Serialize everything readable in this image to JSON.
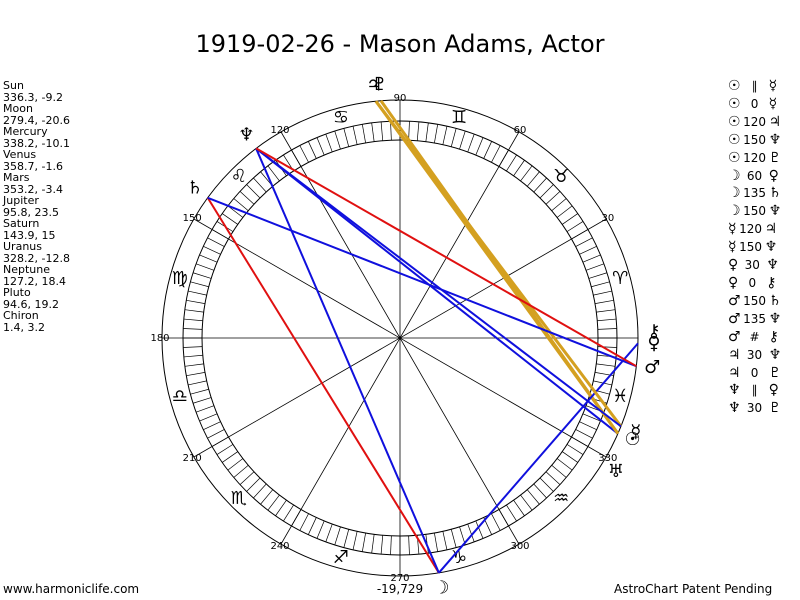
{
  "header": {
    "title": "1919-02-26 - Mason Adams, Actor"
  },
  "planets": [
    {
      "name": "Sun",
      "glyph": "☉",
      "longitude": 336.3,
      "latitude": -9.2
    },
    {
      "name": "Moon",
      "glyph": "☽",
      "longitude": 279.4,
      "latitude": -20.6
    },
    {
      "name": "Mercury",
      "glyph": "☿",
      "longitude": 338.2,
      "latitude": -10.1
    },
    {
      "name": "Venus",
      "glyph": "♀",
      "longitude": 358.7,
      "latitude": -1.6
    },
    {
      "name": "Mars",
      "glyph": "♂",
      "longitude": 353.2,
      "latitude": -3.4
    },
    {
      "name": "Jupiter",
      "glyph": "♃",
      "longitude": 95.8,
      "latitude": 23.5
    },
    {
      "name": "Saturn",
      "glyph": "♄",
      "longitude": 143.9,
      "latitude": 15.0
    },
    {
      "name": "Uranus",
      "glyph": "♅",
      "longitude": 328.2,
      "latitude": -12.8
    },
    {
      "name": "Neptune",
      "glyph": "♆",
      "longitude": 127.2,
      "latitude": 18.4
    },
    {
      "name": "Pluto",
      "glyph": "♇",
      "longitude": 94.6,
      "latitude": 19.2
    },
    {
      "name": "Chiron",
      "glyph": "⚷",
      "longitude": 1.4,
      "latitude": 3.2
    }
  ],
  "zodiac": [
    "♈",
    "♉",
    "♊",
    "♋",
    "♌",
    "♍",
    "♎",
    "♏",
    "♐",
    "♑",
    "♒",
    "♓"
  ],
  "degree_ticks": [
    30,
    60,
    90,
    120,
    150,
    180,
    210,
    240,
    270,
    300,
    330
  ],
  "aspects": [
    {
      "from": "☉",
      "aspect": "∥",
      "to": "☿"
    },
    {
      "from": "☉",
      "aspect": "0",
      "to": "☿"
    },
    {
      "from": "☉",
      "aspect": "120",
      "to": "♃",
      "color": "#d4a020"
    },
    {
      "from": "☉",
      "aspect": "150",
      "to": "♆",
      "color": "#1010dd"
    },
    {
      "from": "☉",
      "aspect": "120",
      "to": "♇",
      "color": "#d4a020"
    },
    {
      "from": "☽",
      "aspect": "60",
      "to": "♀",
      "color": "#1010dd"
    },
    {
      "from": "☽",
      "aspect": "135",
      "to": "♄",
      "color": "#e01010"
    },
    {
      "from": "☽",
      "aspect": "150",
      "to": "♆",
      "color": "#1010dd"
    },
    {
      "from": "☿",
      "aspect": "120",
      "to": "♃",
      "color": "#d4a020"
    },
    {
      "from": "☿",
      "aspect": "150",
      "to": "♆",
      "color": "#1010dd"
    },
    {
      "from": "♀",
      "aspect": "30",
      "to": "♆"
    },
    {
      "from": "♀",
      "aspect": "0",
      "to": "⚷"
    },
    {
      "from": "♂",
      "aspect": "150",
      "to": "♄",
      "color": "#1010dd"
    },
    {
      "from": "♂",
      "aspect": "135",
      "to": "♆",
      "color": "#e01010"
    },
    {
      "from": "♂",
      "aspect": "#",
      "to": "⚷"
    },
    {
      "from": "♃",
      "aspect": "30",
      "to": "♆"
    },
    {
      "from": "♃",
      "aspect": "0",
      "to": "♇"
    },
    {
      "from": "♆",
      "aspect": "∥",
      "to": "♀"
    },
    {
      "from": "♆",
      "aspect": "30",
      "to": "♇"
    }
  ],
  "footer": {
    "left": "www.harmoniclife.com",
    "center": "-19,729",
    "right": "AstroChart Patent Pending"
  }
}
